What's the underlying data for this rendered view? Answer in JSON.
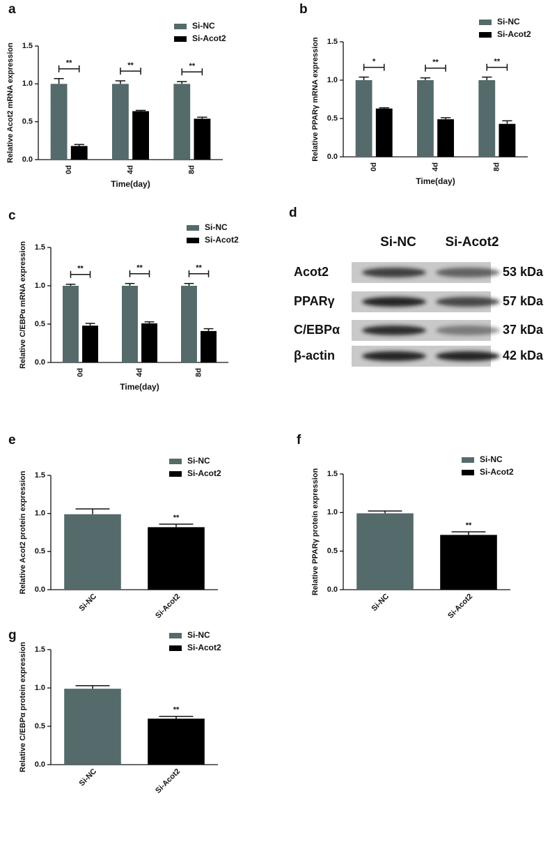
{
  "chart_data": [
    {
      "type": "bar",
      "panel": "a",
      "y_label": "Relative Acot2 mRNA expression",
      "x_label": "Time(day)",
      "categories": [
        "0d",
        "4d",
        "8d"
      ],
      "series": [
        {
          "name": "Si-NC",
          "color": "#546a6b",
          "values": [
            1.0,
            1.0,
            1.0
          ],
          "errors": [
            0.07,
            0.04,
            0.03
          ]
        },
        {
          "name": "Si-Acot2",
          "color": "#000000",
          "values": [
            0.18,
            0.64,
            0.54
          ],
          "errors": [
            0.02,
            0.01,
            0.02
          ]
        }
      ],
      "annotations": [
        "**",
        "**",
        "**"
      ],
      "ylim": [
        0,
        1.5
      ],
      "yticks": [
        {
          "value": 0,
          "label": "0.0"
        },
        0.5,
        {
          "value": 1,
          "label": "1.0"
        },
        1.5
      ]
    },
    {
      "type": "bar",
      "panel": "b",
      "y_label": "Relative PPARγ mRNA expression",
      "x_label": "Time(day)",
      "categories": [
        "0d",
        "4d",
        "8d"
      ],
      "series": [
        {
          "name": "Si-NC",
          "color": "#546a6b",
          "values": [
            1.0,
            1.0,
            1.0
          ],
          "errors": [
            0.04,
            0.03,
            0.04
          ]
        },
        {
          "name": "Si-Acot2",
          "color": "#000000",
          "values": [
            0.63,
            0.49,
            0.43
          ],
          "errors": [
            0.01,
            0.02,
            0.04
          ]
        }
      ],
      "annotations": [
        "*",
        "**",
        "**"
      ],
      "ylim": [
        0,
        1.5
      ],
      "yticks": [
        {
          "value": 0,
          "label": "0.0"
        },
        0.5,
        {
          "value": 1,
          "label": "1.0"
        },
        1.5
      ]
    },
    {
      "type": "bar",
      "panel": "c",
      "y_label": "Relative C/EBPα mRNA expression",
      "x_label": "Time(day)",
      "categories": [
        "0d",
        "4d",
        "8d"
      ],
      "series": [
        {
          "name": "Si-NC",
          "color": "#546a6b",
          "values": [
            1.0,
            1.0,
            1.0
          ],
          "errors": [
            0.02,
            0.03,
            0.03
          ]
        },
        {
          "name": "Si-Acot2",
          "color": "#000000",
          "values": [
            0.48,
            0.51,
            0.41
          ],
          "errors": [
            0.03,
            0.02,
            0.03
          ]
        }
      ],
      "annotations": [
        "**",
        "**",
        "**"
      ],
      "ylim": [
        0,
        1.5
      ],
      "yticks": [
        {
          "value": 0,
          "label": "0.0"
        },
        0.5,
        {
          "value": 1,
          "label": "1.0"
        },
        1.5
      ]
    },
    {
      "type": "bar",
      "panel": "e",
      "y_label": "Relative Acot2 protein expression",
      "categories": [
        "Si-NC",
        "Si-Acot2"
      ],
      "colors": [
        "#546a6b",
        "#000000"
      ],
      "values": [
        0.99,
        0.82
      ],
      "errors": [
        0.07,
        0.04
      ],
      "annotations": [
        null,
        "**"
      ],
      "ylim": [
        0,
        1.5
      ],
      "yticks": [
        {
          "value": 0,
          "label": "0.0"
        },
        0.5,
        {
          "value": 1,
          "label": "1.0"
        },
        1.5
      ]
    },
    {
      "type": "bar",
      "panel": "f",
      "y_label": "Relative PPARγ protein expression",
      "categories": [
        "Si-NC",
        "Si-Acot2"
      ],
      "colors": [
        "#546a6b",
        "#000000"
      ],
      "values": [
        0.99,
        0.71
      ],
      "errors": [
        0.03,
        0.04
      ],
      "annotations": [
        null,
        "**"
      ],
      "ylim": [
        0,
        1.5
      ],
      "yticks": [
        {
          "value": 0,
          "label": "0.0"
        },
        0.5,
        {
          "value": 1,
          "label": "1.0"
        },
        1.5
      ]
    },
    {
      "type": "bar",
      "panel": "g",
      "y_label": "Relative C/EBPα protein expression",
      "categories": [
        "Si-NC",
        "Si-Acot2"
      ],
      "colors": [
        "#546a6b",
        "#000000"
      ],
      "values": [
        0.99,
        0.6
      ],
      "errors": [
        0.04,
        0.03
      ],
      "annotations": [
        null,
        "**"
      ],
      "ylim": [
        0,
        1.5
      ],
      "yticks": [
        {
          "value": 0,
          "label": "0.0"
        },
        0.5,
        {
          "value": 1,
          "label": "1.0"
        },
        1.5
      ]
    }
  ],
  "blot": {
    "panel": "d",
    "columns": [
      "Si-NC",
      "Si-Acot2"
    ],
    "rows": [
      {
        "protein": "Acot2",
        "size": "53 kDa"
      },
      {
        "protein": "PPARγ",
        "size": "57 kDa"
      },
      {
        "protein": "C/EBPα",
        "size": "37 kDa"
      },
      {
        "protein": "β-actin",
        "size": "42 kDa"
      }
    ]
  }
}
